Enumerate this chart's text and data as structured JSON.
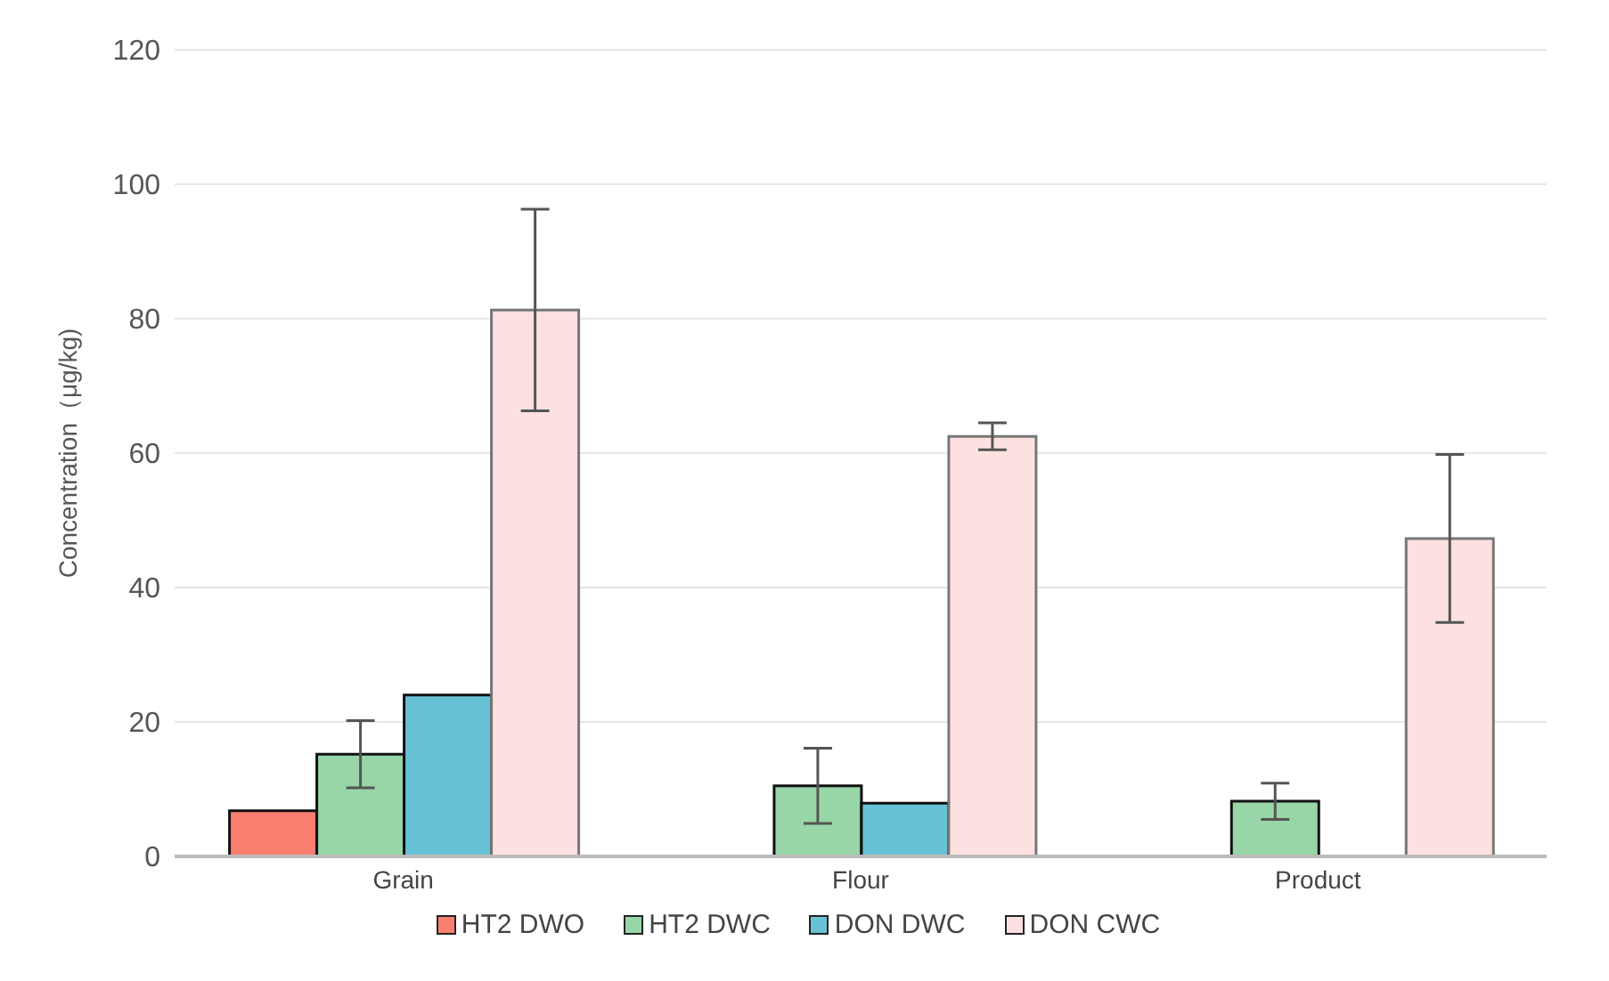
{
  "chart_data": {
    "type": "bar",
    "ylabel": "Concentration（μg/kg)",
    "categories": [
      "Grain",
      "Flour",
      "Product"
    ],
    "series": [
      {
        "name": "HT2 DWO",
        "color": "#fa7f6f",
        "values": [
          6.8,
          null,
          null
        ]
      },
      {
        "name": "HT2 DWC",
        "color": "#98d6a8",
        "values": [
          15.2,
          10.5,
          8.2
        ],
        "errors": [
          5,
          5.6,
          2.7
        ]
      },
      {
        "name": "DON DWC",
        "color": "#68c2d5",
        "values": [
          24,
          7.9,
          null
        ]
      },
      {
        "name": "DON CWC",
        "color": "#fde1e0",
        "values": [
          81.3,
          62.5,
          47.3
        ],
        "errors": [
          15,
          2,
          12.5
        ]
      }
    ],
    "ylim": [
      0,
      120
    ],
    "yticks": [
      0,
      20,
      40,
      60,
      80,
      100,
      120
    ],
    "grid": "y",
    "legend": "bottom"
  }
}
